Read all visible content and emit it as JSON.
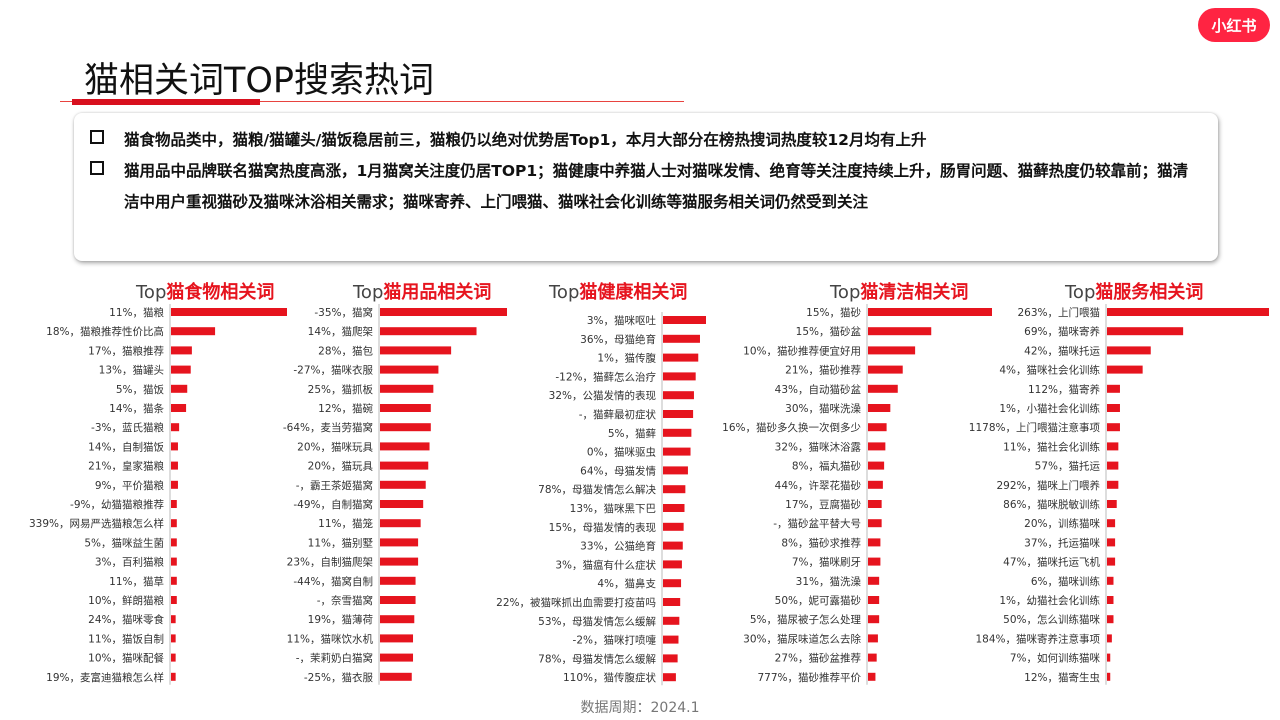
{
  "brand": {
    "logo_text": "小红书"
  },
  "title": "猫相关词TOP搜索热词",
  "summary": [
    "猫食物品类中，猫粮/猫罐头/猫饭稳居前三，猫粮仍以绝对优势居Top1，本月大部分在榜热搜词热度较12月均有上升",
    "猫用品中品牌联名猫窝热度高涨，1月猫窝关注度仍居TOP1；猫健康中养猫人士对猫咪发情、绝育等关注度持续上升，肠胃问题、猫藓热度仍较靠前；猫清洁中用户重视猫砂及猫咪沐浴相关需求；猫咪寄养、上门喂猫、猫咪社会化训练等猫服务相关词仍然受到关注"
  ],
  "footer": "数据周期：2024.1",
  "colors": {
    "bar": "#e6141e",
    "accent": "#ff2442"
  },
  "chart_data": [
    {
      "type": "bar",
      "orientation": "horizontal",
      "title_prefix": "Top",
      "title": "猫食物相关词",
      "categories": [
        "11%，猫粮",
        "18%，猫粮推荐性价比高",
        "17%，猫粮推荐",
        "13%，猫罐头",
        "5%，猫饭",
        "14%，猫条",
        "-3%，蓝氏猫粮",
        "14%，自制猫饭",
        "21%，皇家猫粮",
        "9%，平价猫粮",
        "-9%，幼猫猫粮推荐",
        "339%，网易严选猫粮怎么样",
        "5%，猫咪益生菌",
        "3%，百利猫粮",
        "11%，猫草",
        "10%，鲜朗猫粮",
        "24%，猫咪零食",
        "11%，猫饭自制",
        "10%，猫咪配餐",
        "19%，麦富迪猫粮怎么样"
      ],
      "values": [
        100,
        38,
        18,
        17,
        14,
        13,
        7,
        6,
        6,
        6,
        5,
        5,
        5,
        5,
        5,
        5,
        4,
        4,
        4,
        4
      ],
      "value_unit": "relative search heat"
    },
    {
      "type": "bar",
      "orientation": "horizontal",
      "title_prefix": "Top",
      "title": "猫用品相关词",
      "categories": [
        "-35%，猫窝",
        "14%，猫爬架",
        "28%，猫包",
        "-27%，猫咪衣服",
        "25%，猫抓板",
        "12%，猫碗",
        "-64%，麦当劳猫窝",
        "20%，猫咪玩具",
        "20%，猫玩具",
        "-，霸王茶姬猫窝",
        "-49%，自制猫窝",
        "11%，猫笼",
        "11%，猫别墅",
        "23%，自制猫爬架",
        "-44%，猫窝自制",
        "-，奈雪猫窝",
        "19%，猫薄荷",
        "11%，猫咪饮水机",
        "-，茉莉奶白猫窝",
        "-25%，猫衣服"
      ],
      "values": [
        100,
        76,
        56,
        46,
        42,
        40,
        40,
        39,
        38,
        36,
        34,
        32,
        30,
        30,
        28,
        28,
        27,
        26,
        26,
        25
      ],
      "value_unit": "relative search heat"
    },
    {
      "type": "bar",
      "orientation": "horizontal",
      "title_prefix": "Top",
      "title": "猫健康相关词",
      "categories": [
        "3%，猫咪呕吐",
        "36%，母猫绝育",
        "1%，猫传腹",
        "-12%，猫藓怎么治疗",
        "32%，公猫发情的表现",
        "-，猫藓最初症状",
        "5%，猫藓",
        "0%，猫咪驱虫",
        "64%，母猫发情",
        "78%，母猫发情怎么解决",
        "13%，猫咪黑下巴",
        "15%，母猫发情的表现",
        "33%，公猫绝育",
        "3%，猫瘟有什么症状",
        "4%，猫鼻支",
        "22%，被猫咪抓出血需要打疫苗吗",
        "53%，母猫发情怎么缓解",
        "-2%，猫咪打喷嚏",
        "78%，母猫发情怎么缓解",
        "110%，猫传腹症状"
      ],
      "values": [
        100,
        86,
        82,
        76,
        72,
        70,
        66,
        64,
        58,
        52,
        50,
        48,
        46,
        44,
        42,
        40,
        38,
        36,
        34,
        30
      ],
      "value_unit": "relative search heat"
    },
    {
      "type": "bar",
      "orientation": "horizontal",
      "title_prefix": "Top",
      "title": "猫清洁相关词",
      "categories": [
        "15%，猫砂",
        "15%，猫砂盆",
        "10%，猫砂推荐便宜好用",
        "21%，猫砂推荐",
        "43%，自动猫砂盆",
        "30%，猫咪洗澡",
        "16%，猫砂多久换一次倒多少",
        "32%，猫咪沐浴露",
        "8%，福丸猫砂",
        "44%，许翠花猫砂",
        "17%，豆腐猫砂",
        "-，猫砂盆平替大号",
        "8%，猫砂求推荐",
        "7%，猫咪刷牙",
        "31%，猫洗澡",
        "50%，妮可露猫砂",
        "5%，猫尿被子怎么处理",
        "30%，猫尿味道怎么去除",
        "27%，猫砂盆推荐",
        "777%，猫砂推荐平价"
      ],
      "values": [
        100,
        51,
        38,
        28,
        24,
        18,
        15,
        14,
        13,
        12,
        11,
        11,
        10,
        10,
        9,
        9,
        9,
        8,
        7,
        6
      ],
      "value_unit": "relative search heat"
    },
    {
      "type": "bar",
      "orientation": "horizontal",
      "title_prefix": "Top",
      "title": "猫服务相关词",
      "categories": [
        "263%，上门喂猫",
        "69%，猫咪寄养",
        "42%，猫咪托运",
        "4%，猫咪社会化训练",
        "112%，猫寄养",
        "1%，小猫社会化训练",
        "1178%，上门喂猫注意事项",
        "11%，猫社会化训练",
        "57%，猫托运",
        "292%，猫咪上门喂养",
        "86%，猫咪脱敏训练",
        "20%，训练猫咪",
        "37%，托运猫咪",
        "47%，猫咪托运飞机",
        "6%，猫咪训练",
        "1%，幼猫社会化训练",
        "50%，怎么训练猫咪",
        "184%，猫咪寄养注意事项",
        "7%，如何训练猫咪",
        "12%，猫寄生虫"
      ],
      "values": [
        100,
        47,
        27,
        22,
        8,
        8,
        8,
        7,
        7,
        7,
        6,
        5,
        5,
        5,
        4,
        4,
        4,
        3,
        2,
        2
      ],
      "value_unit": "relative search heat"
    }
  ]
}
